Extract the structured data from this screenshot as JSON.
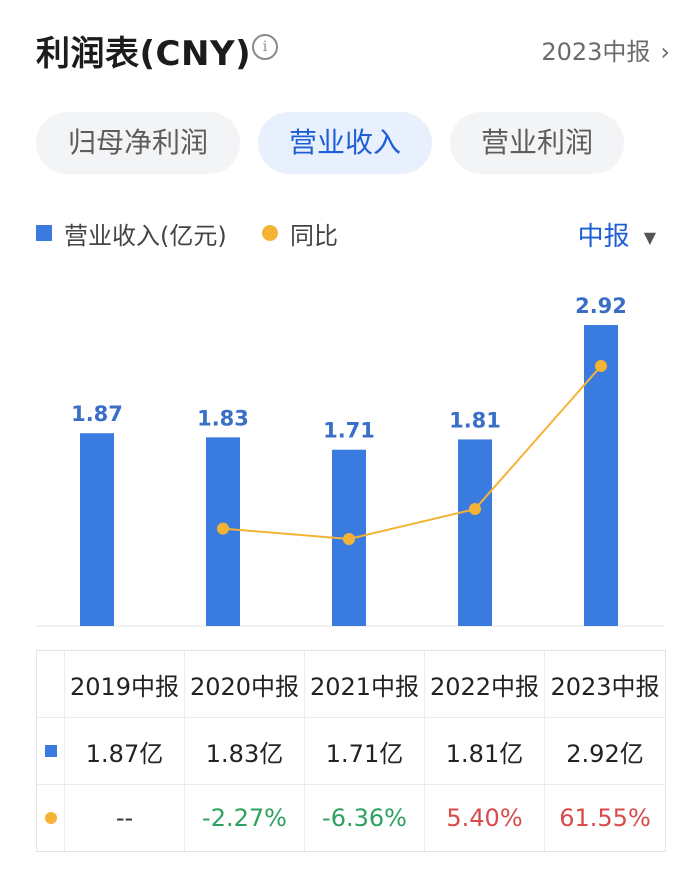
{
  "header": {
    "title": "利润表(CNY)",
    "info_icon": "info-icon",
    "period_link": "2023中报",
    "chevron_icon": "chevron-right-icon"
  },
  "tabs": [
    {
      "label": "归母净利润",
      "active": false
    },
    {
      "label": "营业收入",
      "active": true
    },
    {
      "label": "营业利润",
      "active": false
    }
  ],
  "legend": {
    "bar_label": "营业收入(亿元)",
    "line_label": "同比",
    "period_select": "中报"
  },
  "colors": {
    "bar": "#3a7be0",
    "line": "#f5b335",
    "accent": "#1f5fd6",
    "positive": "#d94a4a",
    "negative": "#2ea05f"
  },
  "chart_data": {
    "type": "bar",
    "categories": [
      "2019中报",
      "2020中报",
      "2021中报",
      "2022中报",
      "2023中报"
    ],
    "series": [
      {
        "name": "营业收入(亿元)",
        "type": "bar",
        "values": [
          1.87,
          1.83,
          1.71,
          1.81,
          2.92
        ],
        "labels": [
          "1.87",
          "1.83",
          "1.71",
          "1.81",
          "2.92"
        ]
      },
      {
        "name": "同比",
        "type": "line",
        "values": [
          null,
          -2.27,
          -6.36,
          5.4,
          61.55
        ]
      }
    ],
    "legend_position": "top-left",
    "grid": false
  },
  "table": {
    "headers": [
      "2019中报",
      "2020中报",
      "2021中报",
      "2022中报",
      "2023中报"
    ],
    "revenue_row": [
      "1.87亿",
      "1.83亿",
      "1.71亿",
      "1.81亿",
      "2.92亿"
    ],
    "yoy_row": [
      "--",
      "-2.27%",
      "-6.36%",
      "5.40%",
      "61.55%"
    ]
  }
}
